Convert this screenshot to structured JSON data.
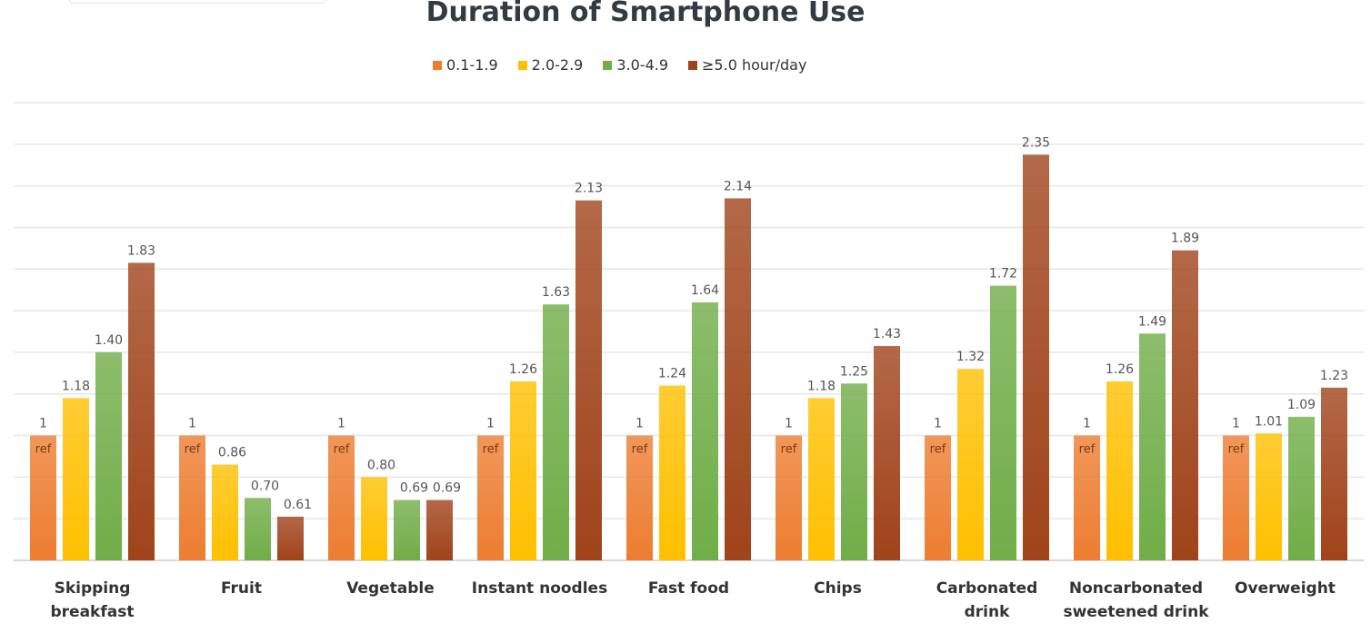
{
  "chart_data": {
    "type": "bar",
    "title": "Duration of Smartphone Use",
    "xlabel": "",
    "ylabel": "",
    "ylim": [
      0.4,
      2.6
    ],
    "grid": true,
    "legend_position": "top-center",
    "categories": [
      "Skipping breakfast",
      "Fruit",
      "Vegetable",
      "Instant noodles",
      "Fast food",
      "Chips",
      "Carbonated drink",
      "Noncarbonated sweetened drink",
      "Overweight"
    ],
    "category_lines": [
      [
        "Skipping",
        "breakfast"
      ],
      [
        "Fruit"
      ],
      [
        "Vegetable"
      ],
      [
        "Instant noodles"
      ],
      [
        "Fast food"
      ],
      [
        "Chips"
      ],
      [
        "Carbonated",
        "drink"
      ],
      [
        "Noncarbonated",
        "sweetened drink"
      ],
      [
        "Overweight"
      ]
    ],
    "series": [
      {
        "name": "0.1-1.9",
        "color": "#ed7d31",
        "values": [
          1,
          1,
          1,
          1,
          1,
          1,
          1,
          1,
          1
        ],
        "labels": [
          "1",
          "1",
          "1",
          "1",
          "1",
          "1",
          "1",
          "1",
          "1"
        ],
        "inner_label": "ref"
      },
      {
        "name": "2.0-2.9",
        "color": "#ffc000",
        "values": [
          1.18,
          0.86,
          0.8,
          1.26,
          1.24,
          1.18,
          1.32,
          1.26,
          1.01
        ],
        "labels": [
          "1.18",
          "0.86",
          "0.80",
          "1.26",
          "1.24",
          "1.18",
          "1.32",
          "1.26",
          "1.01"
        ]
      },
      {
        "name": "3.0-4.9",
        "color": "#70ad47",
        "values": [
          1.4,
          0.7,
          0.69,
          1.63,
          1.64,
          1.25,
          1.72,
          1.49,
          1.09
        ],
        "labels": [
          "1.40",
          "0.70",
          "0.69",
          "1.63",
          "1.64",
          "1.25",
          "1.72",
          "1.49",
          "1.09"
        ]
      },
      {
        "name": "≥5.0 hour/day",
        "color": "#a0431a",
        "values": [
          1.83,
          0.61,
          0.69,
          2.13,
          2.14,
          1.43,
          2.35,
          1.89,
          1.23
        ],
        "labels": [
          "1.83",
          "0.61",
          "0.69",
          "2.13",
          "2.14",
          "1.43",
          "2.35",
          "1.89",
          "1.23"
        ]
      }
    ]
  }
}
